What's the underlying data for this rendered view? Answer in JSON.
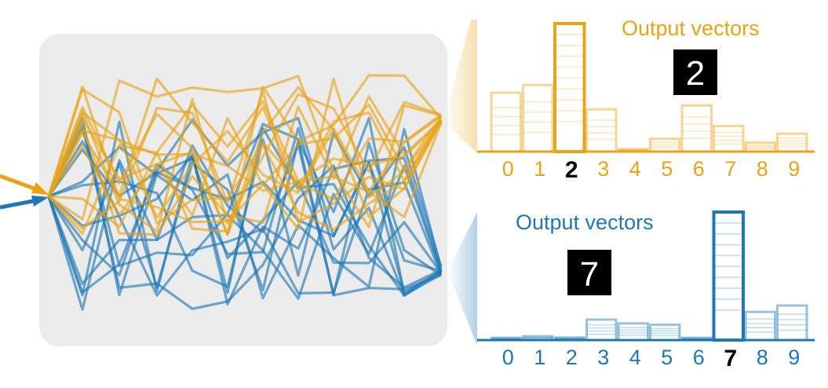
{
  "colors": {
    "top": "#E8A317",
    "bottom": "#1F78B4",
    "panel": "#EBEBEB"
  },
  "top_panel": {
    "title": "Output vectors",
    "digit_image": "2",
    "highlighted_class": "2",
    "class_labels": [
      "0",
      "1",
      "2",
      "3",
      "4",
      "5",
      "6",
      "7",
      "8",
      "9"
    ],
    "bar_values": [
      0.46,
      0.52,
      1.0,
      0.33,
      0.02,
      0.1,
      0.36,
      0.2,
      0.07,
      0.14
    ]
  },
  "bottom_panel": {
    "title": "Output vectors",
    "digit_image": "7",
    "highlighted_class": "7",
    "class_labels": [
      "0",
      "1",
      "2",
      "3",
      "4",
      "5",
      "6",
      "7",
      "8",
      "9"
    ],
    "bar_values": [
      0.01,
      0.03,
      0.02,
      0.16,
      0.13,
      0.12,
      0.01,
      1.0,
      0.22,
      0.27
    ]
  }
}
